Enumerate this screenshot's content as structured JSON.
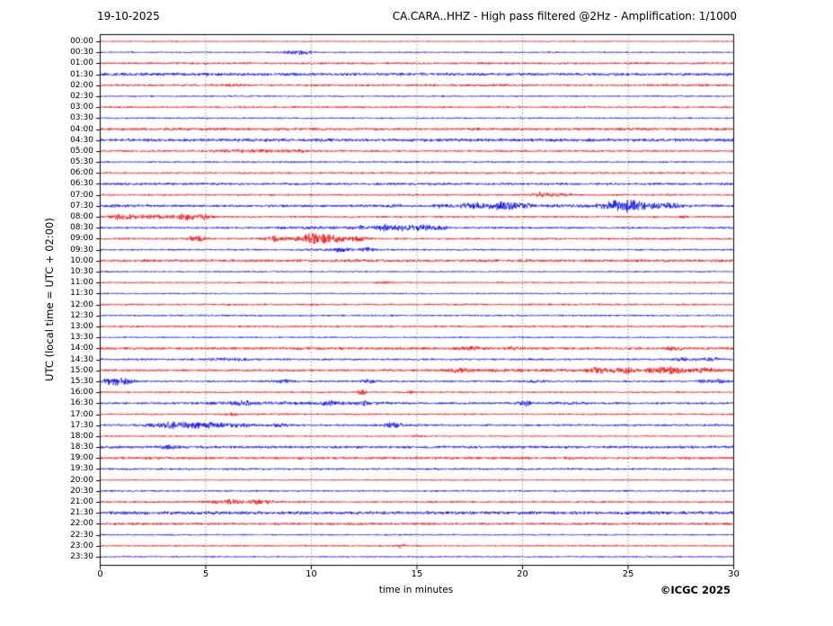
{
  "header": {
    "date": "19-10-2025",
    "title": "CA.CARA..HHZ - High pass filtered @2Hz - Amplification: 1/1000"
  },
  "footer": {
    "copyright": "©ICGC 2025"
  },
  "chart_data": {
    "type": "line",
    "subtype": "helicorder-day-plot",
    "xlabel": "time in minutes",
    "ylabel": "UTC (local time = UTC + 02:00)",
    "x_range": [
      0,
      30
    ],
    "x_ticks": [
      0,
      5,
      10,
      15,
      20,
      25,
      30
    ],
    "grid_minutes": [
      5,
      10,
      15,
      20,
      25
    ],
    "grid_style": "dotted",
    "minutes_per_row": 30,
    "colors": {
      "red": "#f00000",
      "blue": "#0000f0",
      "grid": "#555555",
      "axis": "#000000"
    },
    "rows": [
      {
        "label": "00:00",
        "color": "red",
        "base": 0.55,
        "segments": [],
        "events": []
      },
      {
        "label": "00:30",
        "color": "blue",
        "base": 0.6,
        "segments": [
          [
            8.5,
            10.5,
            0.5
          ]
        ],
        "events": [
          [
            9.3,
            0.45,
            1.5
          ]
        ]
      },
      {
        "label": "01:00",
        "color": "red",
        "base": 0.95,
        "segments": [],
        "events": []
      },
      {
        "label": "01:30",
        "color": "blue",
        "base": 1.35,
        "segments": [],
        "events": []
      },
      {
        "label": "02:00",
        "color": "red",
        "base": 0.95,
        "segments": [],
        "events": [
          [
            6.4,
            0.3,
            0.7
          ]
        ]
      },
      {
        "label": "02:30",
        "color": "blue",
        "base": 0.65,
        "segments": [],
        "events": []
      },
      {
        "label": "03:00",
        "color": "red",
        "base": 0.85,
        "segments": [],
        "events": []
      },
      {
        "label": "03:30",
        "color": "blue",
        "base": 0.7,
        "segments": [],
        "events": []
      },
      {
        "label": "04:00",
        "color": "red",
        "base": 1.15,
        "segments": [],
        "events": []
      },
      {
        "label": "04:30",
        "color": "blue",
        "base": 1.35,
        "segments": [],
        "events": []
      },
      {
        "label": "05:00",
        "color": "red",
        "base": 0.9,
        "segments": [
          [
            5,
            10,
            0.7
          ]
        ],
        "events": []
      },
      {
        "label": "05:30",
        "color": "blue",
        "base": 0.75,
        "segments": [],
        "events": []
      },
      {
        "label": "06:00",
        "color": "red",
        "base": 0.85,
        "segments": [],
        "events": []
      },
      {
        "label": "06:30",
        "color": "blue",
        "base": 1.05,
        "segments": [],
        "events": []
      },
      {
        "label": "07:00",
        "color": "red",
        "base": 0.8,
        "segments": [],
        "events": [
          [
            20.9,
            0.35,
            1.9
          ],
          [
            21.9,
            0.3,
            1.0
          ]
        ]
      },
      {
        "label": "07:30",
        "color": "blue",
        "base": 1.1,
        "segments": [
          [
            16,
            28,
            0.4
          ]
        ],
        "events": [
          [
            1.0,
            0.3,
            0.6
          ],
          [
            13.9,
            0.25,
            0.8
          ],
          [
            16.1,
            0.25,
            1.0
          ],
          [
            17.4,
            0.3,
            1.4
          ],
          [
            18.1,
            0.3,
            1.6
          ],
          [
            18.9,
            0.35,
            2.0
          ],
          [
            19.5,
            0.25,
            1.4
          ],
          [
            20.2,
            0.3,
            1.0
          ],
          [
            24.3,
            0.45,
            3.0
          ],
          [
            24.9,
            0.4,
            3.4
          ],
          [
            25.5,
            0.3,
            2.0
          ],
          [
            26.3,
            0.25,
            1.2
          ],
          [
            27.0,
            0.3,
            1.3
          ]
        ]
      },
      {
        "label": "08:00",
        "color": "red",
        "base": 0.85,
        "segments": [
          [
            0.3,
            5.5,
            0.6
          ]
        ],
        "events": [
          [
            0.9,
            0.3,
            1.5
          ],
          [
            2.2,
            0.4,
            1.2
          ],
          [
            4.1,
            0.3,
            1.7
          ],
          [
            4.9,
            0.25,
            1.3
          ],
          [
            27.6,
            0.2,
            0.9
          ]
        ]
      },
      {
        "label": "08:30",
        "color": "blue",
        "base": 0.85,
        "segments": [
          [
            8,
            16.5,
            0.5
          ]
        ],
        "events": [
          [
            12.5,
            0.25,
            1.1
          ],
          [
            13.4,
            0.2,
            2.1
          ],
          [
            14.1,
            0.25,
            1.5
          ],
          [
            14.8,
            0.3,
            1.5
          ],
          [
            15.4,
            0.25,
            1.3
          ],
          [
            16.2,
            0.25,
            1.1
          ]
        ]
      },
      {
        "label": "09:00",
        "color": "red",
        "base": 0.85,
        "segments": [
          [
            7.5,
            13,
            0.5
          ]
        ],
        "events": [
          [
            4.4,
            0.18,
            1.8
          ],
          [
            4.8,
            0.18,
            1.7
          ],
          [
            8.3,
            0.25,
            1.4
          ],
          [
            9.1,
            0.3,
            1.9
          ],
          [
            9.9,
            0.25,
            2.6
          ],
          [
            10.35,
            0.25,
            2.8
          ],
          [
            10.8,
            0.25,
            2.3
          ],
          [
            11.3,
            0.25,
            1.9
          ],
          [
            12.1,
            0.3,
            1.2
          ]
        ]
      },
      {
        "label": "09:30",
        "color": "blue",
        "base": 0.75,
        "segments": [
          [
            9,
            13,
            0.4
          ]
        ],
        "events": [
          [
            11.4,
            0.3,
            1.1
          ],
          [
            12.7,
            0.22,
            1.4
          ]
        ]
      },
      {
        "label": "10:00",
        "color": "red",
        "base": 1.25,
        "segments": [],
        "events": []
      },
      {
        "label": "10:30",
        "color": "blue",
        "base": 0.65,
        "segments": [],
        "events": []
      },
      {
        "label": "11:00",
        "color": "red",
        "base": 0.7,
        "segments": [],
        "events": [
          [
            13.5,
            0.25,
            0.8
          ]
        ]
      },
      {
        "label": "11:30",
        "color": "blue",
        "base": 0.65,
        "segments": [],
        "events": []
      },
      {
        "label": "12:00",
        "color": "red",
        "base": 0.85,
        "segments": [],
        "events": []
      },
      {
        "label": "12:30",
        "color": "blue",
        "base": 0.75,
        "segments": [],
        "events": []
      },
      {
        "label": "13:00",
        "color": "red",
        "base": 0.85,
        "segments": [],
        "events": []
      },
      {
        "label": "13:30",
        "color": "blue",
        "base": 0.65,
        "segments": [],
        "events": []
      },
      {
        "label": "14:00",
        "color": "red",
        "base": 1.15,
        "segments": [],
        "events": [
          [
            17.6,
            0.4,
            1.2
          ],
          [
            19.6,
            0.35,
            1.0
          ],
          [
            27.1,
            0.35,
            1.2
          ]
        ]
      },
      {
        "label": "14:30",
        "color": "blue",
        "base": 0.85,
        "segments": [],
        "events": [
          [
            5.6,
            0.3,
            1.1
          ],
          [
            6.6,
            0.3,
            0.9
          ],
          [
            27.6,
            0.35,
            1.3
          ],
          [
            29.0,
            0.3,
            1.1
          ]
        ]
      },
      {
        "label": "15:00",
        "color": "red",
        "base": 1.0,
        "segments": [
          [
            16,
            30,
            0.5
          ]
        ],
        "events": [
          [
            17.0,
            0.3,
            1.3
          ],
          [
            23.5,
            0.35,
            1.5
          ],
          [
            24.8,
            0.35,
            1.7
          ],
          [
            26.5,
            0.4,
            2.2
          ],
          [
            27.3,
            0.35,
            1.9
          ],
          [
            28.6,
            0.3,
            1.4
          ]
        ]
      },
      {
        "label": "15:30",
        "color": "blue",
        "base": 0.85,
        "segments": [
          [
            0,
            1.6,
            0.6
          ]
        ],
        "events": [
          [
            0.35,
            0.2,
            1.6
          ],
          [
            0.8,
            0.25,
            1.8
          ],
          [
            1.3,
            0.25,
            1.2
          ],
          [
            8.7,
            0.3,
            1.1
          ],
          [
            12.7,
            0.25,
            1.2
          ],
          [
            20.6,
            0.3,
            0.9
          ],
          [
            28.7,
            0.3,
            1.3
          ],
          [
            29.4,
            0.25,
            1.1
          ]
        ]
      },
      {
        "label": "16:00",
        "color": "red",
        "base": 0.75,
        "segments": [],
        "events": [
          [
            12.4,
            0.15,
            2.3
          ],
          [
            14.8,
            0.25,
            0.8
          ]
        ]
      },
      {
        "label": "16:30",
        "color": "blue",
        "base": 0.95,
        "segments": [
          [
            4,
            14,
            0.45
          ],
          [
            21,
            23.5,
            0.4
          ]
        ],
        "events": [
          [
            6.8,
            0.35,
            1.1
          ],
          [
            11.0,
            0.35,
            1.2
          ],
          [
            12.5,
            0.3,
            1.1
          ],
          [
            20.1,
            0.3,
            1.7
          ]
        ]
      },
      {
        "label": "17:00",
        "color": "red",
        "base": 0.75,
        "segments": [],
        "events": [
          [
            6.3,
            0.25,
            1.0
          ]
        ]
      },
      {
        "label": "17:30",
        "color": "blue",
        "base": 0.95,
        "segments": [
          [
            1.5,
            7.5,
            1.0
          ]
        ],
        "events": [
          [
            3.5,
            0.5,
            1.2
          ],
          [
            5.0,
            0.5,
            1.2
          ],
          [
            8.5,
            0.3,
            1.0
          ],
          [
            13.9,
            0.3,
            2.0
          ]
        ]
      },
      {
        "label": "18:00",
        "color": "red",
        "base": 0.65,
        "segments": [],
        "events": [
          [
            15.0,
            0.25,
            0.7
          ]
        ]
      },
      {
        "label": "18:30",
        "color": "blue",
        "base": 1.2,
        "segments": [],
        "events": [
          [
            3.2,
            0.3,
            1.2
          ]
        ]
      },
      {
        "label": "19:00",
        "color": "red",
        "base": 1.15,
        "segments": [],
        "events": []
      },
      {
        "label": "19:30",
        "color": "blue",
        "base": 0.85,
        "segments": [],
        "events": []
      },
      {
        "label": "20:00",
        "color": "red",
        "base": 0.65,
        "segments": [],
        "events": []
      },
      {
        "label": "20:30",
        "color": "blue",
        "base": 0.75,
        "segments": [],
        "events": []
      },
      {
        "label": "21:00",
        "color": "red",
        "base": 0.85,
        "segments": [
          [
            4.5,
            8.5,
            0.5
          ]
        ],
        "events": [
          [
            6.0,
            0.35,
            1.1
          ],
          [
            7.5,
            0.35,
            1.1
          ]
        ]
      },
      {
        "label": "21:30",
        "color": "blue",
        "base": 1.45,
        "segments": [],
        "events": []
      },
      {
        "label": "22:00",
        "color": "red",
        "base": 1.05,
        "segments": [],
        "events": []
      },
      {
        "label": "22:30",
        "color": "blue",
        "base": 0.65,
        "segments": [],
        "events": []
      },
      {
        "label": "23:00",
        "color": "red",
        "base": 0.75,
        "segments": [],
        "events": [
          [
            14.3,
            0.15,
            1.6
          ]
        ]
      },
      {
        "label": "23:30",
        "color": "blue",
        "base": 0.65,
        "segments": [],
        "events": []
      }
    ]
  }
}
